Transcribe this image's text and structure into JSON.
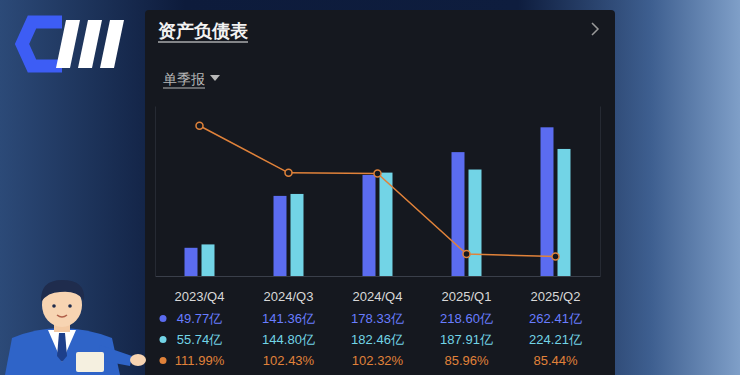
{
  "chart_data": {
    "type": "bar",
    "title": "资产负债表",
    "subtitle": "单季报",
    "categories": [
      "2023/Q4",
      "2024/Q3",
      "2024/Q4",
      "2025/Q1",
      "2025/Q2"
    ],
    "series": [
      {
        "type": "bar",
        "color": "#5b6cf0",
        "values": [
          49.77,
          141.36,
          178.33,
          218.6,
          262.41
        ],
        "value_labels": [
          "49.77亿",
          "141.36亿",
          "178.33亿",
          "218.60亿",
          "262.41亿"
        ]
      },
      {
        "type": "bar",
        "color": "#72d4e6",
        "values": [
          55.74,
          144.8,
          182.46,
          187.91,
          224.21
        ],
        "value_labels": [
          "55.74亿",
          "144.80亿",
          "182.46亿",
          "187.91亿",
          "224.21亿"
        ]
      },
      {
        "type": "line",
        "axis": "y2",
        "color": "#e0823a",
        "marker": "circle",
        "values": [
          111.99,
          102.43,
          102.32,
          85.96,
          85.44
        ],
        "value_labels": [
          "111.99%",
          "102.43%",
          "102.32%",
          "85.96%",
          "85.44%"
        ]
      }
    ],
    "ylim": [
      0,
      300
    ],
    "y2lim": [
      81.5,
      116
    ],
    "tick_labels": "x"
  }
}
